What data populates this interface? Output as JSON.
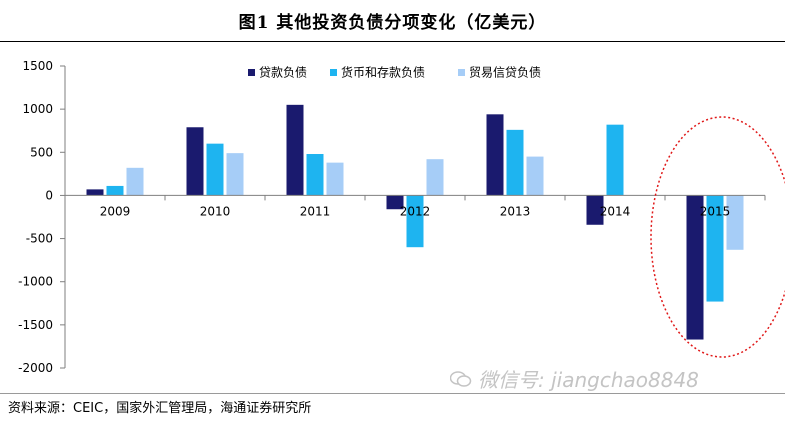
{
  "page": {
    "title": "图1  其他投资负债分项变化（亿美元）",
    "source": "资料来源：CEIC，国家外汇管理局，海通证券研究所",
    "watermark": "微信号: jiangchao8848"
  },
  "colors": {
    "series1": "#1a1a6e",
    "series2": "#1eb4f0",
    "series3": "#a6cdf7",
    "highlight_ellipse": "#e01818",
    "axis": "#7f7f7f"
  },
  "chart_data": {
    "type": "bar",
    "title": "其他投资负债分项变化（亿美元）",
    "xlabel": "",
    "ylabel": "",
    "categories": [
      "2009",
      "2010",
      "2011",
      "2012",
      "2013",
      "2014",
      "2015"
    ],
    "series": [
      {
        "name": "贷款负债",
        "values": [
          70,
          790,
          1050,
          -160,
          940,
          -340,
          -1670
        ]
      },
      {
        "name": "货币和存款负债",
        "values": [
          110,
          600,
          480,
          -600,
          760,
          820,
          -1230
        ]
      },
      {
        "name": "贸易信贷负债",
        "values": [
          320,
          490,
          380,
          420,
          450,
          0,
          -630
        ]
      }
    ],
    "ylim": [
      -2000,
      1500
    ],
    "yticks": [
      1500,
      1000,
      500,
      0,
      -500,
      -1000,
      -1500,
      -2000
    ],
    "legend_position": "top-center",
    "annotation": "red dotted ellipse around 2015"
  }
}
